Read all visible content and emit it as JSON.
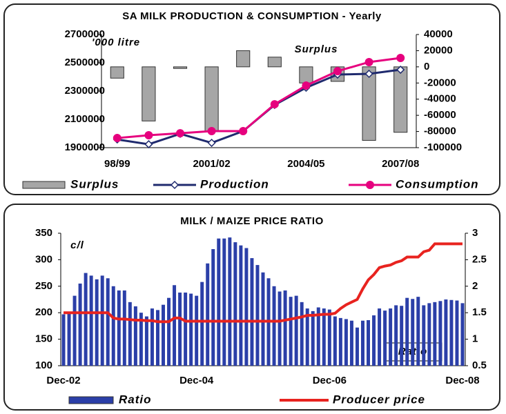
{
  "chart_data": [
    {
      "type": "combo",
      "title": "SA MILK PRODUCTION & CONSUMPTION - Yearly",
      "annotations": [
        "'000 litre",
        "Surplus"
      ],
      "categories": [
        "98/99",
        null,
        null,
        "2001/02",
        null,
        null,
        "2004/05",
        null,
        null,
        "2007/08"
      ],
      "series": [
        {
          "name": "Surplus",
          "type": "bar",
          "axis": "y2",
          "color": "#a6a6a6",
          "values": [
            -14000,
            -67000,
            -2000,
            -80000,
            20000,
            12000,
            -20000,
            -18000,
            -91000,
            -81000
          ]
        },
        {
          "name": "Production",
          "type": "line",
          "marker": "diamond",
          "color": "#1f2a6e",
          "values": [
            1958000,
            1924000,
            1998000,
            1934000,
            2017000,
            2202000,
            2324000,
            2417000,
            2422000,
            2451000
          ]
        },
        {
          "name": "Consumption",
          "type": "line",
          "marker": "circle",
          "color": "#e6007e",
          "values": [
            1968000,
            1988000,
            2002000,
            2017000,
            2017000,
            2207000,
            2339000,
            2441000,
            2505000,
            2534000
          ]
        }
      ],
      "ylim": [
        1900000,
        2700000
      ],
      "yticks": [
        1900000,
        2100000,
        2300000,
        2500000,
        2700000
      ],
      "y2lim": [
        -100000,
        40000
      ],
      "y2ticks": [
        -100000,
        -80000,
        -60000,
        -40000,
        -20000,
        0,
        20000,
        40000
      ],
      "grid": false,
      "legend": "bottom"
    },
    {
      "type": "combo",
      "title": "MILK / MAIZE PRICE RATIO",
      "annotations": [
        "c/l",
        "Ratio"
      ],
      "categories": [
        "Dec-02",
        null,
        null,
        null,
        null,
        null,
        null,
        null,
        null,
        null,
        null,
        null,
        null,
        null,
        null,
        null,
        null,
        null,
        null,
        null,
        null,
        null,
        null,
        null,
        "Dec-04",
        null,
        null,
        null,
        null,
        null,
        null,
        null,
        null,
        null,
        null,
        null,
        null,
        null,
        null,
        null,
        null,
        null,
        null,
        null,
        null,
        null,
        null,
        null,
        "Dec-06",
        null,
        null,
        null,
        null,
        null,
        null,
        null,
        null,
        null,
        null,
        null,
        null,
        null,
        null,
        null,
        null,
        null,
        null,
        null,
        null,
        null,
        null,
        null,
        "Dec-08"
      ],
      "series": [
        {
          "name": "Ratio",
          "type": "bar",
          "axis": "y2",
          "color": "#2b3fa8",
          "values": [
            1.47,
            1.5,
            1.82,
            2.05,
            2.25,
            2.2,
            2.13,
            2.2,
            2.15,
            2.0,
            1.92,
            1.92,
            1.7,
            1.62,
            1.5,
            1.43,
            1.58,
            1.55,
            1.65,
            1.78,
            2.02,
            1.88,
            1.88,
            1.86,
            1.82,
            2.08,
            2.43,
            2.7,
            2.9,
            2.9,
            2.92,
            2.83,
            2.77,
            2.72,
            2.53,
            2.4,
            2.26,
            2.15,
            2.0,
            1.9,
            1.92,
            1.8,
            1.82,
            1.7,
            1.58,
            1.53,
            1.6,
            1.58,
            1.56,
            1.43,
            1.4,
            1.38,
            1.35,
            1.22,
            1.35,
            1.36,
            1.45,
            1.58,
            1.54,
            1.58,
            1.64,
            1.63,
            1.78,
            1.76,
            1.8,
            1.64,
            1.68,
            1.7,
            1.72,
            1.75,
            1.74,
            1.73,
            1.68
          ]
        },
        {
          "name": "Producer price",
          "type": "line",
          "marker": "none",
          "color": "#e8231f",
          "values": [
            200,
            200,
            200,
            200,
            200,
            200,
            200,
            200,
            200,
            190,
            188,
            188,
            187,
            186,
            186,
            185,
            185,
            183,
            183,
            183,
            190,
            190,
            184,
            184,
            184,
            184,
            184,
            184,
            184,
            184,
            184,
            184,
            184,
            184,
            184,
            184,
            184,
            184,
            184,
            184,
            186,
            188,
            190,
            192,
            195,
            195,
            196,
            197,
            197,
            199,
            208,
            215,
            220,
            225,
            245,
            262,
            272,
            285,
            288,
            290,
            295,
            298,
            305,
            305,
            305,
            315,
            318,
            330,
            330,
            330,
            330,
            330,
            330
          ]
        }
      ],
      "ylim": [
        100,
        350
      ],
      "yticks": [
        100,
        150,
        200,
        250,
        300,
        350
      ],
      "y2lim": [
        0.5,
        3
      ],
      "y2ticks": [
        0.5,
        1,
        1.5,
        2,
        2.5,
        3
      ],
      "grid": false,
      "legend": "bottom"
    }
  ]
}
